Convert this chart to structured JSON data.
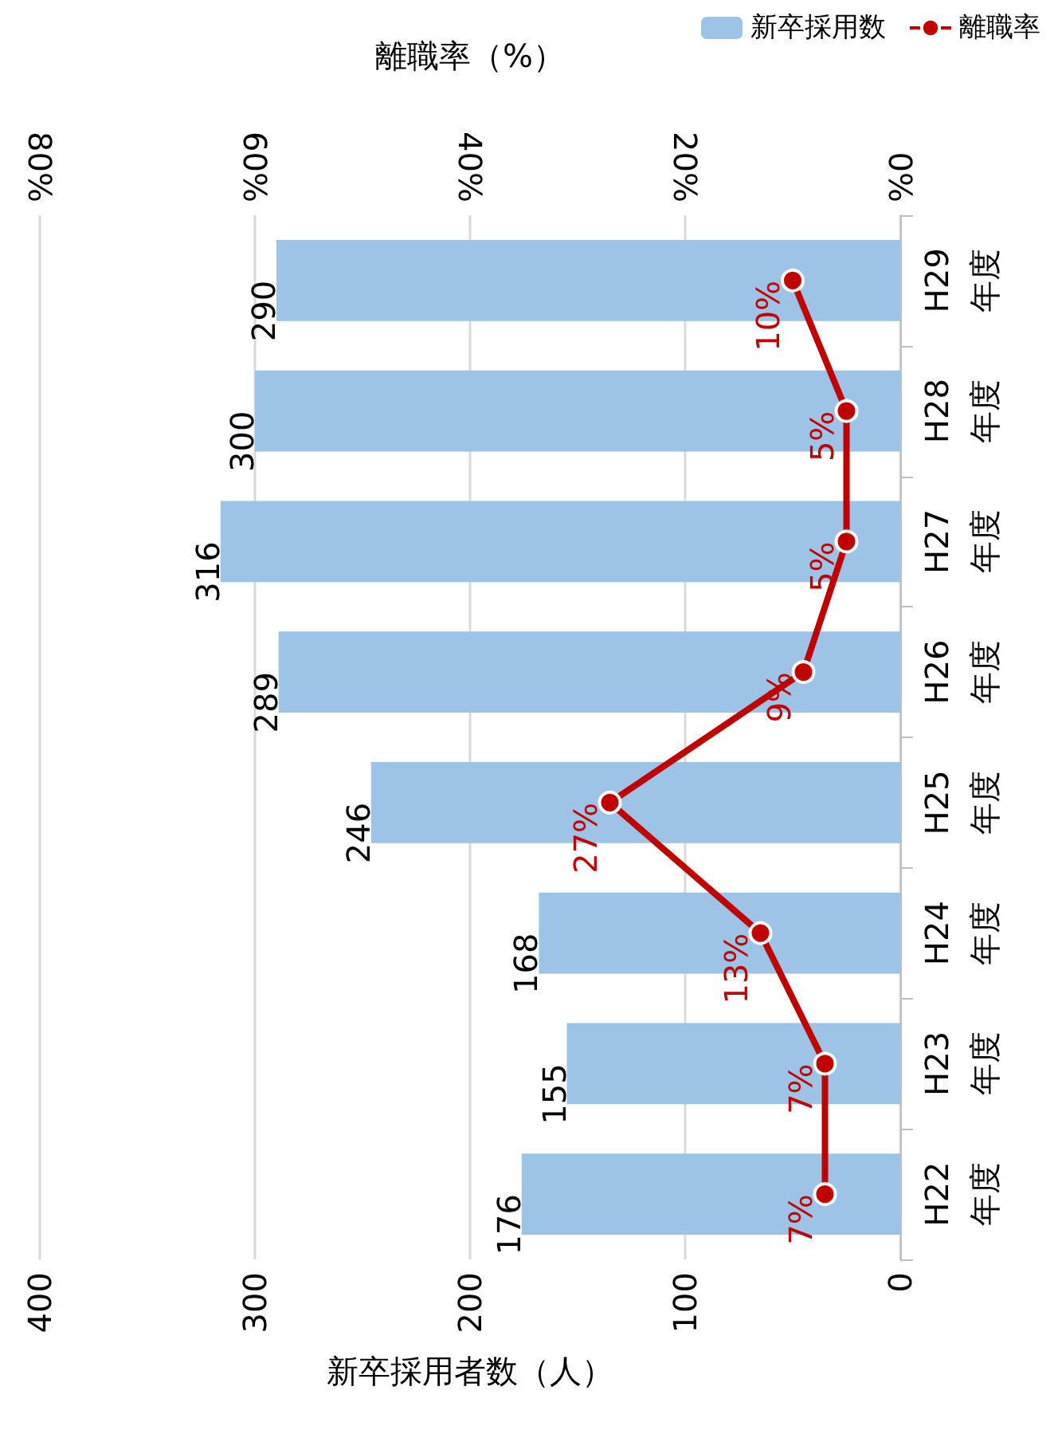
{
  "chart_data": {
    "type": "bar",
    "orientation": "horizontal",
    "categories": [
      "H29\n年度",
      "H28\n年度",
      "H27\n年度",
      "H26\n年度",
      "H25\n年度",
      "H24\n年度",
      "H23\n年度",
      "H22\n年度"
    ],
    "series": [
      {
        "name": "新卒採用数",
        "color": "#9dc3e6",
        "values": [
          290,
          300,
          316,
          289,
          246,
          168,
          155,
          176
        ]
      },
      {
        "name": "離職率",
        "type": "line",
        "axis": "x2",
        "color": "#c00000",
        "values": [
          10,
          5,
          5,
          9,
          27,
          13,
          7,
          7
        ],
        "value_labels": [
          "10%",
          "5%",
          "5%",
          "9%",
          "27%",
          "13%",
          "7%",
          "7%"
        ]
      }
    ],
    "xlabel": "新卒採用者数（人）",
    "x2label": "離職率（%）",
    "xlim": [
      400,
      0
    ],
    "xticks": [
      400,
      300,
      200,
      100,
      0
    ],
    "x2lim": [
      80,
      0
    ],
    "x2ticks": [
      {
        "value": 80,
        "label": "80%"
      },
      {
        "value": 60,
        "label": "60%"
      },
      {
        "value": 40,
        "label": "40%"
      },
      {
        "value": 20,
        "label": "20%"
      },
      {
        "value": 0,
        "label": "0%"
      }
    ],
    "data_labels": true,
    "grid": "x",
    "legend": "top right",
    "marker": "circle",
    "line_style": "solid"
  }
}
